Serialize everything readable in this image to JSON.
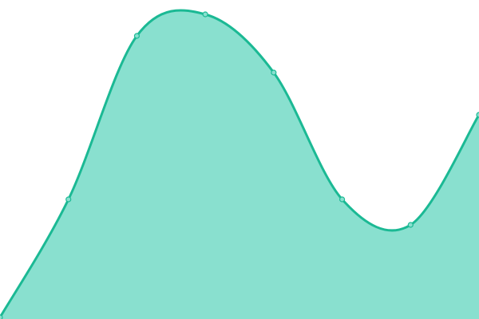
{
  "chart_data": {
    "type": "area",
    "title": "",
    "xlabel": "",
    "ylabel": "",
    "x": [
      0,
      1,
      2,
      3,
      4,
      5,
      6,
      7
    ],
    "series": [
      {
        "values": [
          2,
          150,
          355,
          382,
          309,
          150,
          118,
          256
        ]
      }
    ],
    "ylim": [
      0,
      400
    ],
    "grid": false,
    "axes_visible": false,
    "smooth": true,
    "colors": {
      "line": "#1bb994",
      "fill": "#89e0cf",
      "marker_fill": "#89e0cf"
    }
  }
}
